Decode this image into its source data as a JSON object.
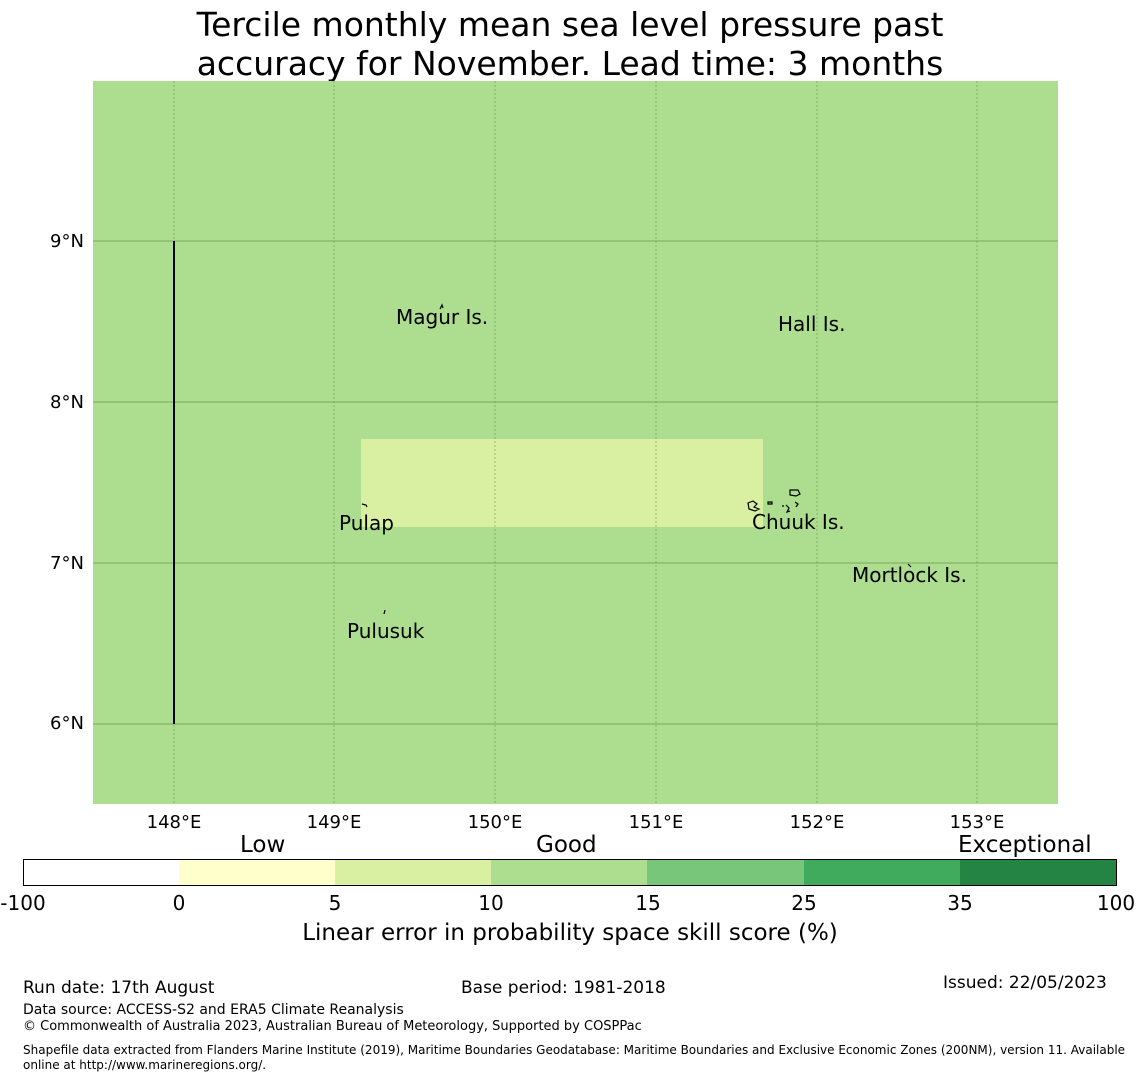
{
  "title_line1": "Tercile monthly mean sea level pressure past",
  "title_line2": "accuracy for November. Lead time: 3 months",
  "latitude_labels": [
    "9°N",
    "8°N",
    "7°N",
    "6°N"
  ],
  "longitude_labels": [
    "148°E",
    "149°E",
    "150°E",
    "151°E",
    "152°E",
    "153°E"
  ],
  "places": {
    "magur": "Magur Is.",
    "hall": "Hall Is.",
    "pulap": "Pulap",
    "chuuk": "Chuuk Is.",
    "mortlock": "Mortlock Is.",
    "pulusuk": "Pulusuk"
  },
  "colors": {
    "low_0_5": "#ffffcc",
    "good_5_10": "#d9f0a3",
    "good_10_15": "#addd8e",
    "good_15_25": "#78c679",
    "exc_25_35": "#41ab5d",
    "exc_35_100": "#238443",
    "neg": "#ffffff"
  },
  "colorbar": {
    "categories": {
      "low": "Low",
      "good": "Good",
      "exceptional": "Exceptional"
    },
    "ticks": [
      "-100",
      "0",
      "5",
      "10",
      "15",
      "25",
      "35",
      "100"
    ],
    "label": "Linear error in probability space skill score (%)"
  },
  "footer": {
    "run_date": "Run date: 17th August",
    "base_period": "Base period: 1981-2018",
    "issued": "Issued: 22/05/2023",
    "data_source": "Data source: ACCESS-S2 and ERA5 Climate Reanalysis",
    "copyright": "© Commonwealth of Australia 2023, Australian Bureau of Meteorology, Supported by COSPPac",
    "shapefile_line1": "Shapefile data extracted from Flanders Marine Institute (2019), Maritime Boundaries Geodatabase: Maritime Boundaries and Exclusive Economic Zones (200NM), version 11. Available",
    "shapefile_line2": "online at http://www.marineregions.org/."
  }
}
